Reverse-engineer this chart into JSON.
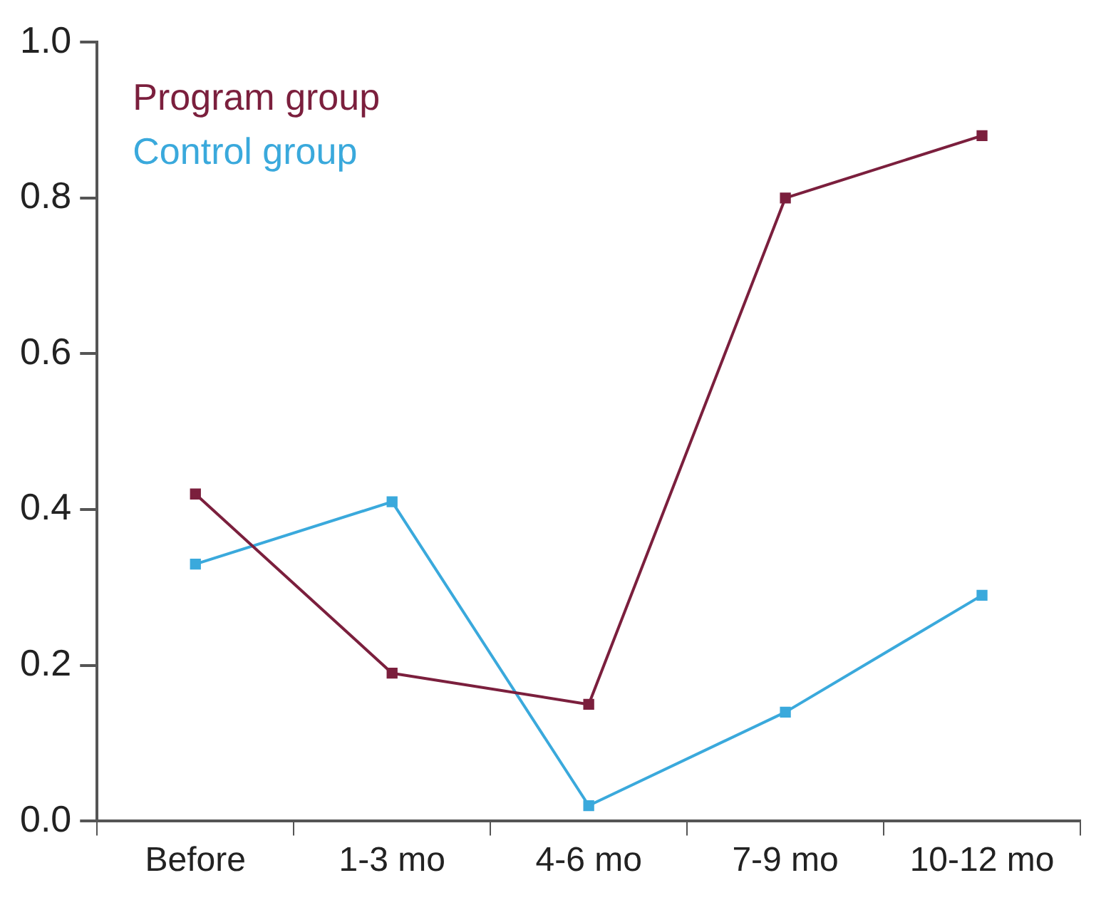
{
  "chart_data": {
    "type": "line",
    "categories": [
      "Before",
      "1-3 mo",
      "4-6 mo",
      "7-9 mo",
      "10-12 mo"
    ],
    "series": [
      {
        "name": "Program group",
        "color": "#7b1f3d",
        "values": [
          0.42,
          0.19,
          0.15,
          0.8,
          0.88
        ]
      },
      {
        "name": "Control group",
        "color": "#3aa9dc",
        "values": [
          0.33,
          0.41,
          0.02,
          0.14,
          0.29
        ]
      }
    ],
    "ylim": [
      0,
      1
    ],
    "yticks": [
      {
        "value": 0,
        "label": "0.0"
      },
      0.2,
      0.4,
      0.6,
      0.8,
      {
        "value": 1,
        "label": "1.0"
      }
    ],
    "grid": false,
    "legend": "top left",
    "marker": "square",
    "line_style": "solid"
  }
}
